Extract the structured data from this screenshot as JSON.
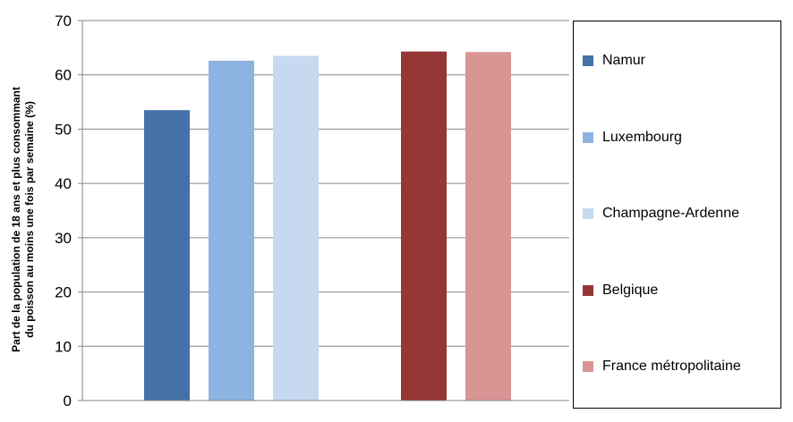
{
  "chart_data": {
    "type": "bar",
    "title": "",
    "xlabel": "",
    "ylabel_lines": [
      "Part de la population de 18 ans et plus consommant",
      "du poisson au moins une fois par semaine (%)"
    ],
    "ylim": [
      0,
      70
    ],
    "yticks": [
      "0",
      "10",
      "20",
      "30",
      "40",
      "50",
      "60",
      "70"
    ],
    "grid": true,
    "legend_position": "right",
    "groups": [
      {
        "series": [
          "Namur",
          "Luxembourg",
          "Champagne-Ardenne"
        ]
      },
      {
        "series": [
          "Belgique",
          "France métropolitaine"
        ]
      }
    ],
    "series": [
      {
        "name": "Namur",
        "value": 53.5,
        "color": "#4472a8"
      },
      {
        "name": "Luxembourg",
        "value": 62.6,
        "color": "#8db3e2"
      },
      {
        "name": "Champagne-Ardenne",
        "value": 63.5,
        "color": "#c6d9f0"
      },
      {
        "name": "Belgique",
        "value": 64.3,
        "color": "#953735"
      },
      {
        "name": "France métropolitaine",
        "value": 64.2,
        "color": "#d99594"
      }
    ]
  }
}
